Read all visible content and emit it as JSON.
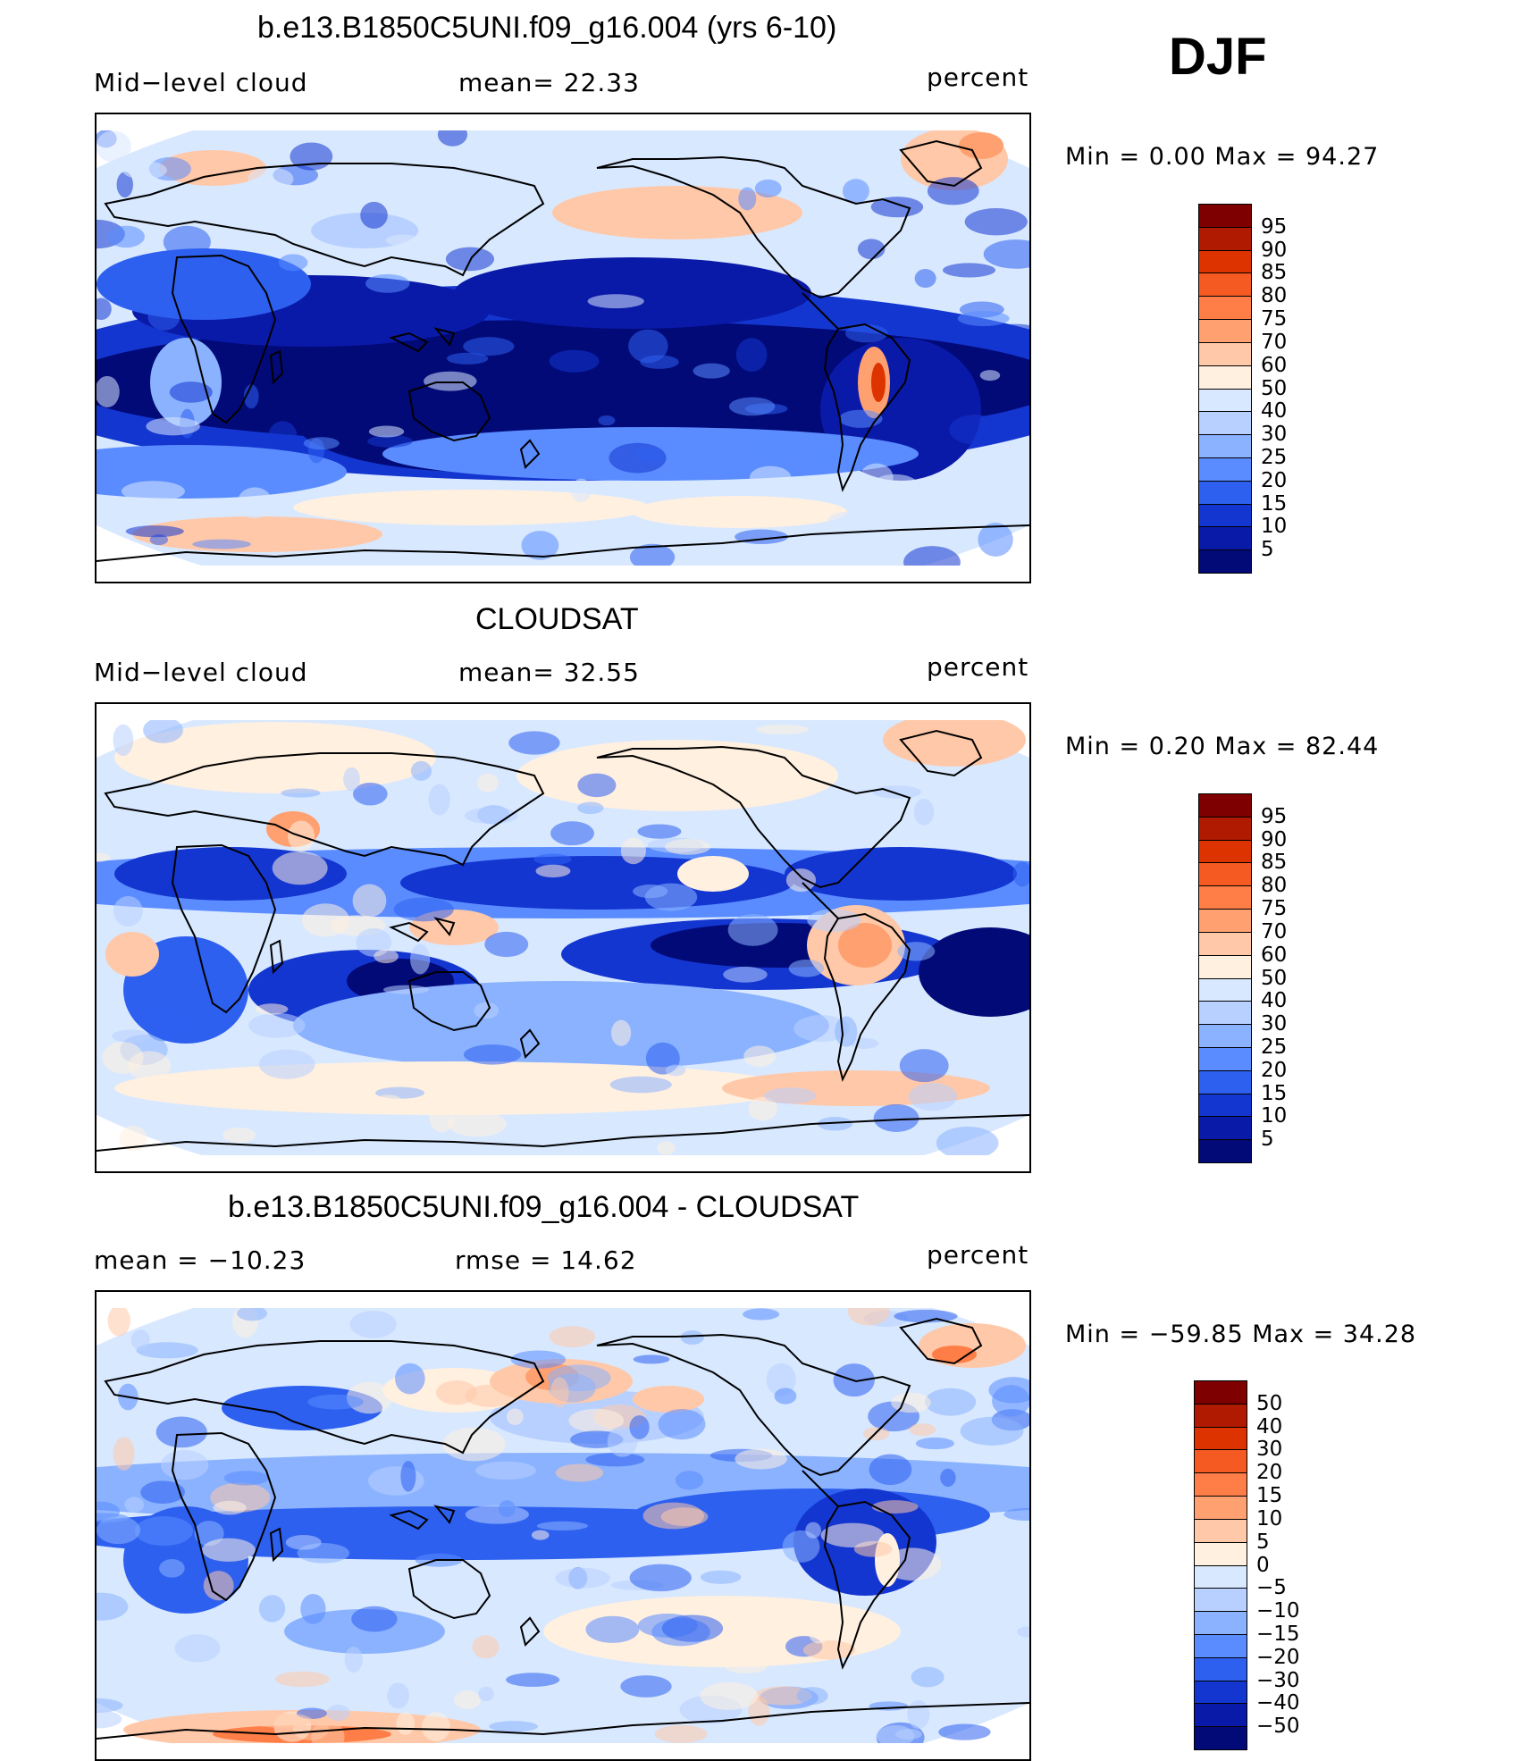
{
  "season": "DJF",
  "panels": [
    {
      "title": "b.e13.B1850C5UNI.f09_g16.004 (yrs 6-10)",
      "left_label": "Mid−level cloud",
      "center_label": "mean=   22.33",
      "right_label": "percent",
      "minmax": "Min  =     0.00  Max  =    94.27",
      "colorbar": {
        "labels": [
          "95",
          "90",
          "85",
          "80",
          "75",
          "70",
          "60",
          "50",
          "40",
          "30",
          "25",
          "20",
          "15",
          "10",
          "5"
        ],
        "colors": [
          "#7f0000",
          "#b01a00",
          "#dd3300",
          "#f55a22",
          "#ff7e48",
          "#ffa070",
          "#ffc8a8",
          "#fff0e0",
          "#d8e8ff",
          "#b8d0ff",
          "#8ab2ff",
          "#5a8cff",
          "#2e60f0",
          "#1436d0",
          "#0a1aa8",
          "#020a78"
        ]
      },
      "map_style": "model"
    },
    {
      "title": "CLOUDSAT",
      "left_label": "Mid−level cloud",
      "center_label": "mean=   32.55",
      "right_label": "percent",
      "minmax": "Min  =     0.20  Max  =    82.44",
      "colorbar": {
        "labels": [
          "95",
          "90",
          "85",
          "80",
          "75",
          "70",
          "60",
          "50",
          "40",
          "30",
          "25",
          "20",
          "15",
          "10",
          "5"
        ],
        "colors": [
          "#7f0000",
          "#b01a00",
          "#dd3300",
          "#f55a22",
          "#ff7e48",
          "#ffa070",
          "#ffc8a8",
          "#fff0e0",
          "#d8e8ff",
          "#b8d0ff",
          "#8ab2ff",
          "#5a8cff",
          "#2e60f0",
          "#1436d0",
          "#0a1aa8",
          "#020a78"
        ]
      },
      "map_style": "obs"
    },
    {
      "title": "b.e13.B1850C5UNI.f09_g16.004 - CLOUDSAT",
      "left_label": "mean  =  −10.23",
      "center_label": "rmse  =    14.62",
      "right_label": "percent",
      "minmax": "Min  =  −59.85  Max  =    34.28",
      "colorbar": {
        "labels": [
          "50",
          "40",
          "30",
          "20",
          "15",
          "10",
          "5",
          "0",
          "−5",
          "−10",
          "−15",
          "−20",
          "−30",
          "−40",
          "−50"
        ],
        "colors": [
          "#7f0000",
          "#b01a00",
          "#dd3300",
          "#f55a22",
          "#ff7e48",
          "#ffa070",
          "#ffc8a8",
          "#fff0e0",
          "#d8e8ff",
          "#b8d0ff",
          "#8ab2ff",
          "#5a8cff",
          "#2e60f0",
          "#1436d0",
          "#0a1aa8",
          "#020a78"
        ]
      },
      "map_style": "diff"
    }
  ]
}
